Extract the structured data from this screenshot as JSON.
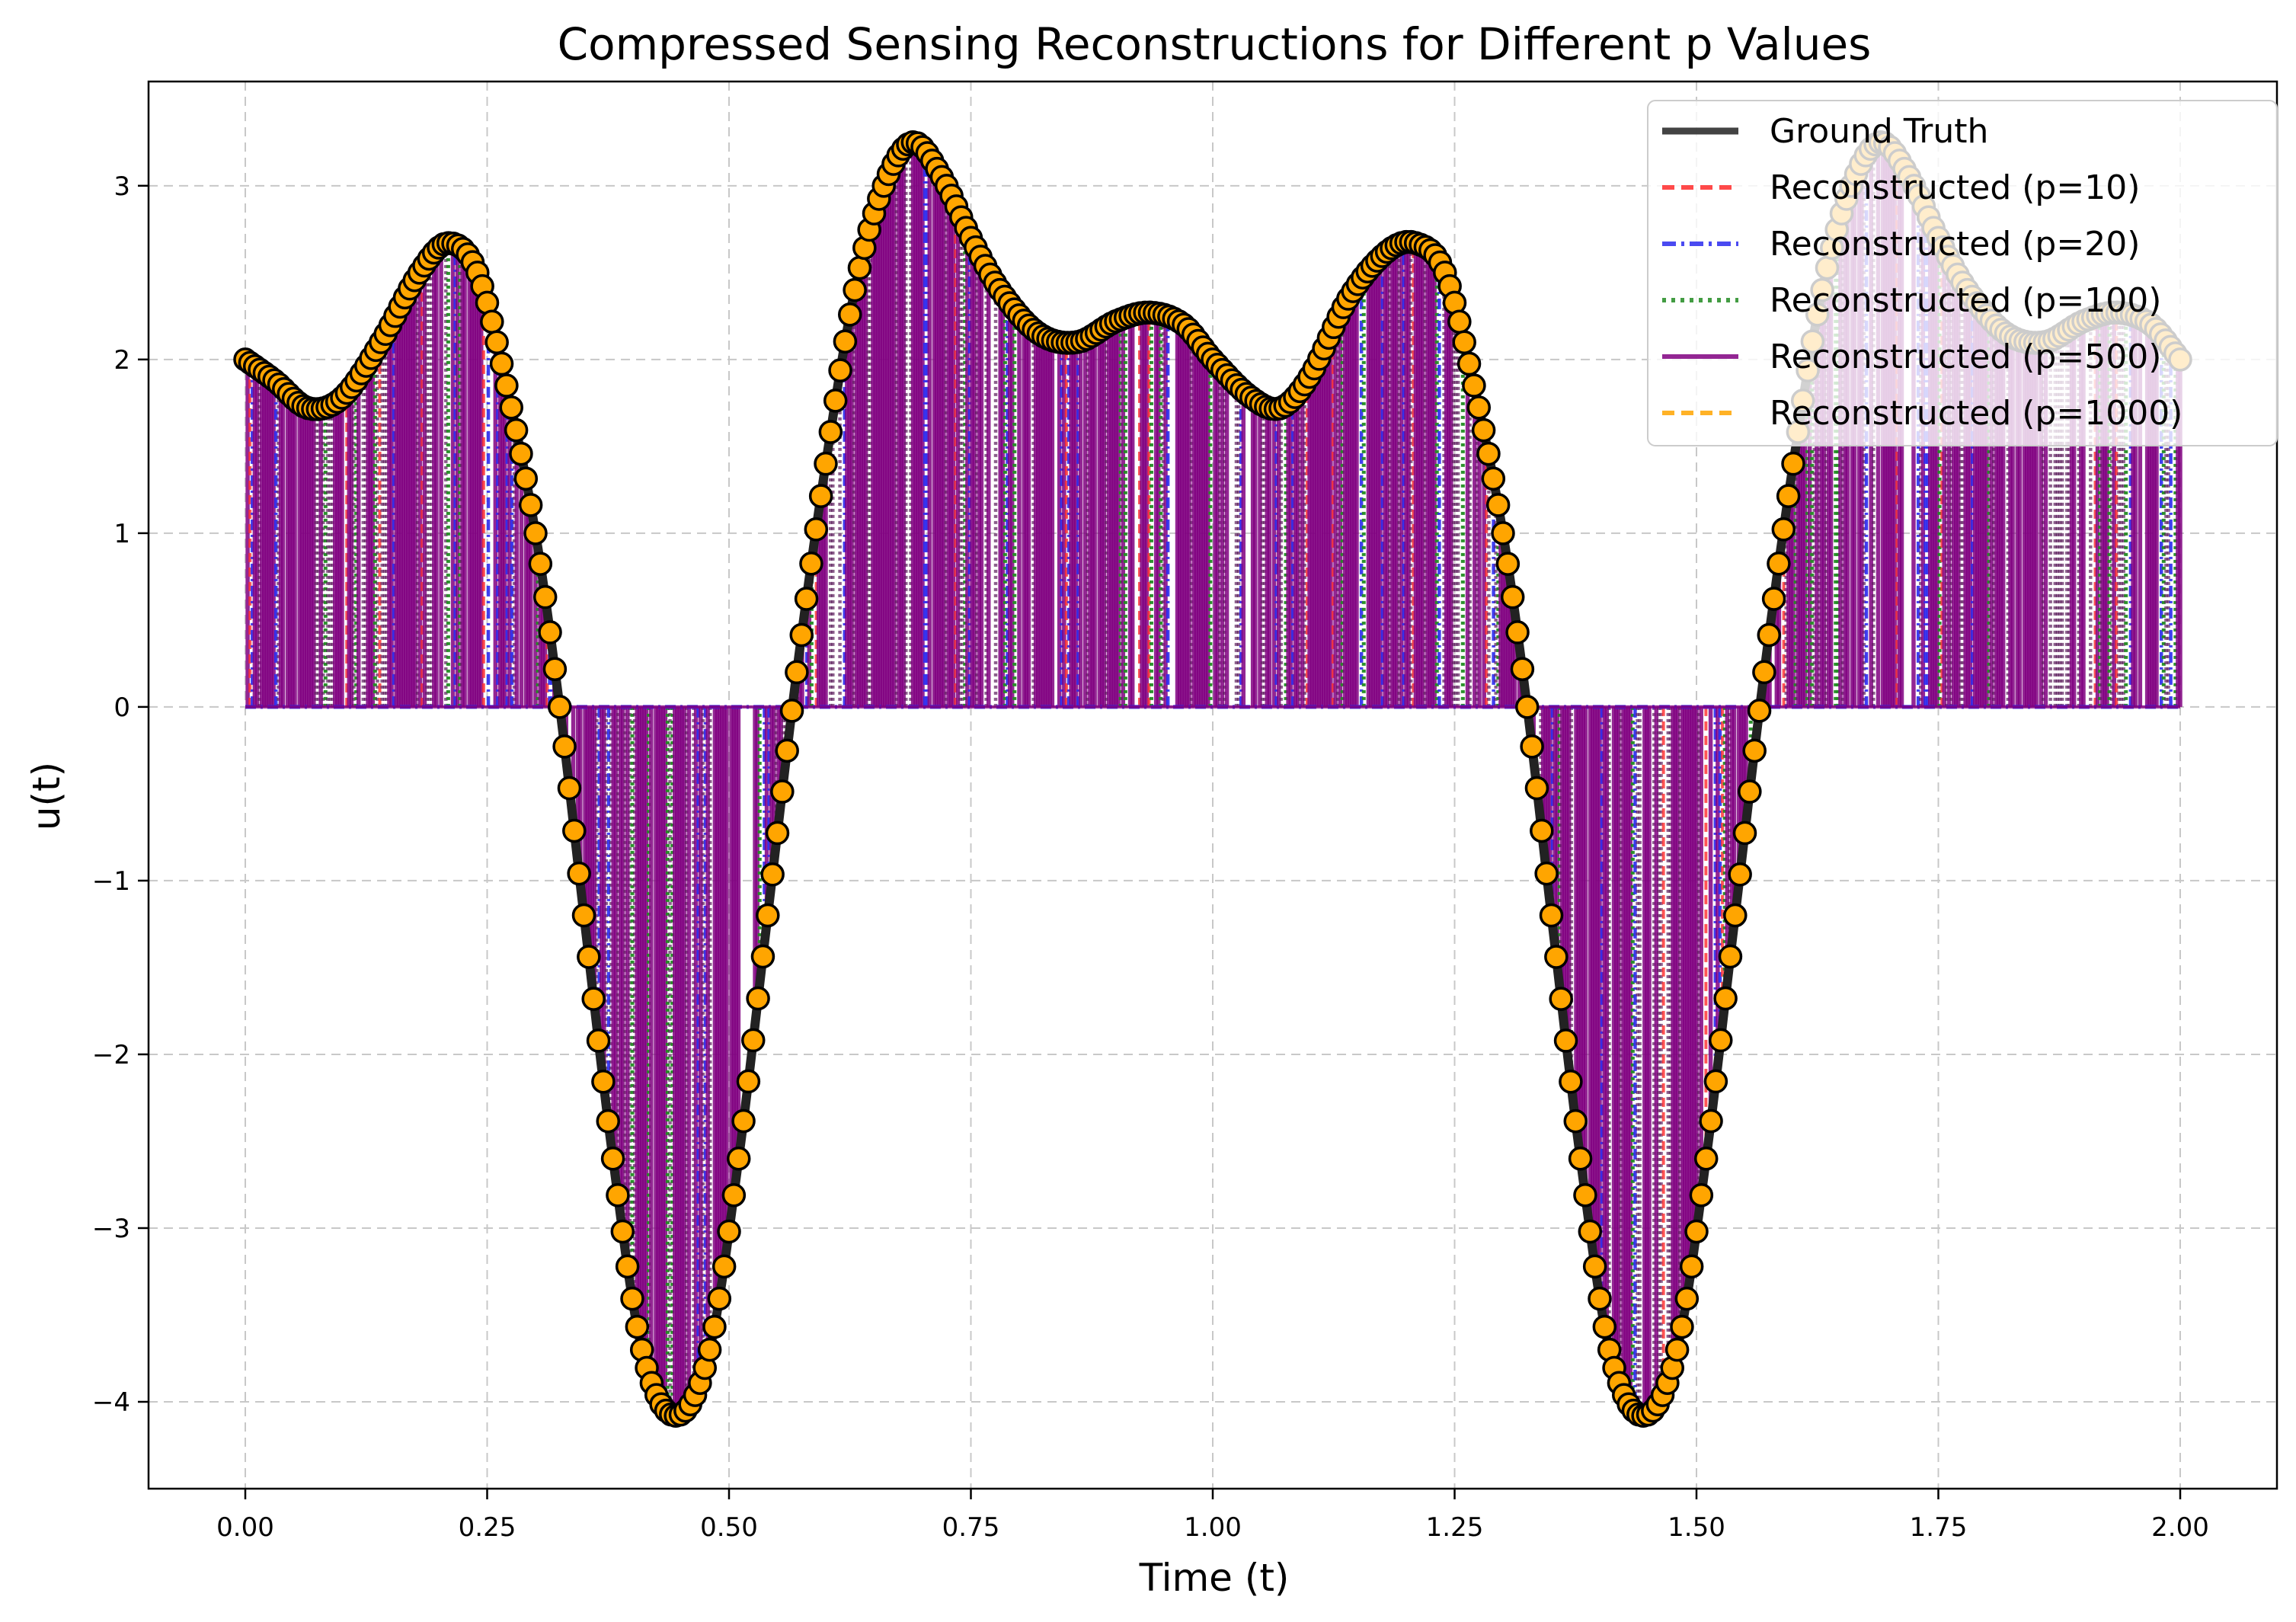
{
  "chart_data": {
    "type": "line",
    "title": "Compressed Sensing Reconstructions for Different p Values",
    "xlabel": "Time (t)",
    "ylabel": "u(t)",
    "xlim": [
      -0.1,
      2.1
    ],
    "ylim": [
      -4.5,
      3.6
    ],
    "xticks": [
      0.0,
      0.25,
      0.5,
      0.75,
      1.0,
      1.25,
      1.5,
      1.75,
      2.0
    ],
    "xtick_labels": [
      "0.00",
      "0.25",
      "0.50",
      "0.75",
      "1.00",
      "1.25",
      "1.50",
      "1.75",
      "2.00"
    ],
    "yticks": [
      -4,
      -3,
      -2,
      -1,
      0,
      1,
      2,
      3
    ],
    "ytick_labels": [
      "−4",
      "−3",
      "−2",
      "−1",
      "0",
      "1",
      "2",
      "3"
    ],
    "grid": true,
    "legend_position": "top-right",
    "colors": {
      "ground_truth": "#222222",
      "p10": "#ff2a2a",
      "p20": "#2a2aee",
      "p100": "#228b22",
      "p500": "#800080",
      "p1000": "#ffa500",
      "marker_fill": "#ffa500",
      "marker_edge": "#000000"
    },
    "ground_truth": {
      "x": [
        0.0,
        0.03,
        0.065,
        0.1,
        0.14,
        0.18,
        0.21,
        0.24,
        0.27,
        0.3,
        0.325,
        0.35,
        0.38,
        0.41,
        0.445,
        0.48,
        0.51,
        0.54,
        0.57,
        0.6,
        0.63,
        0.66,
        0.69,
        0.72,
        0.75,
        0.78,
        0.82,
        0.86,
        0.9,
        0.935,
        0.97,
        1.0,
        1.04,
        1.07,
        1.1,
        1.14,
        1.18,
        1.21,
        1.24,
        1.27,
        1.3,
        1.325,
        1.35,
        1.38,
        1.41,
        1.445,
        1.48,
        1.51,
        1.54,
        1.57,
        1.6,
        1.63,
        1.66,
        1.69,
        1.72,
        1.75,
        1.78,
        1.82,
        1.86,
        1.9,
        1.935,
        1.97,
        2.0
      ],
      "y": [
        2.0,
        1.88,
        1.72,
        1.78,
        2.1,
        2.5,
        2.67,
        2.5,
        1.85,
        1.0,
        0.0,
        -1.2,
        -2.6,
        -3.7,
        -4.08,
        -3.7,
        -2.6,
        -1.2,
        0.2,
        1.4,
        2.4,
        3.0,
        3.25,
        3.05,
        2.7,
        2.4,
        2.15,
        2.1,
        2.22,
        2.27,
        2.2,
        2.0,
        1.78,
        1.72,
        1.9,
        2.35,
        2.62,
        2.67,
        2.5,
        1.85,
        1.0,
        0.0,
        -1.2,
        -2.6,
        -3.7,
        -4.08,
        -3.7,
        -2.6,
        -1.2,
        0.2,
        1.4,
        2.4,
        3.0,
        3.25,
        3.05,
        2.7,
        2.4,
        2.15,
        2.1,
        2.22,
        2.27,
        2.2,
        2.0
      ]
    },
    "series": [
      {
        "name": "Ground Truth",
        "style": "solid"
      },
      {
        "name": "Reconstructed (p=10)",
        "style": "dashed"
      },
      {
        "name": "Reconstructed (p=20)",
        "style": "dashdot"
      },
      {
        "name": "Reconstructed (p=100)",
        "style": "dotted"
      },
      {
        "name": "Reconstructed (p=500)",
        "style": "solid"
      },
      {
        "name": "Reconstructed (p=1000)",
        "style": "dashed"
      }
    ]
  }
}
